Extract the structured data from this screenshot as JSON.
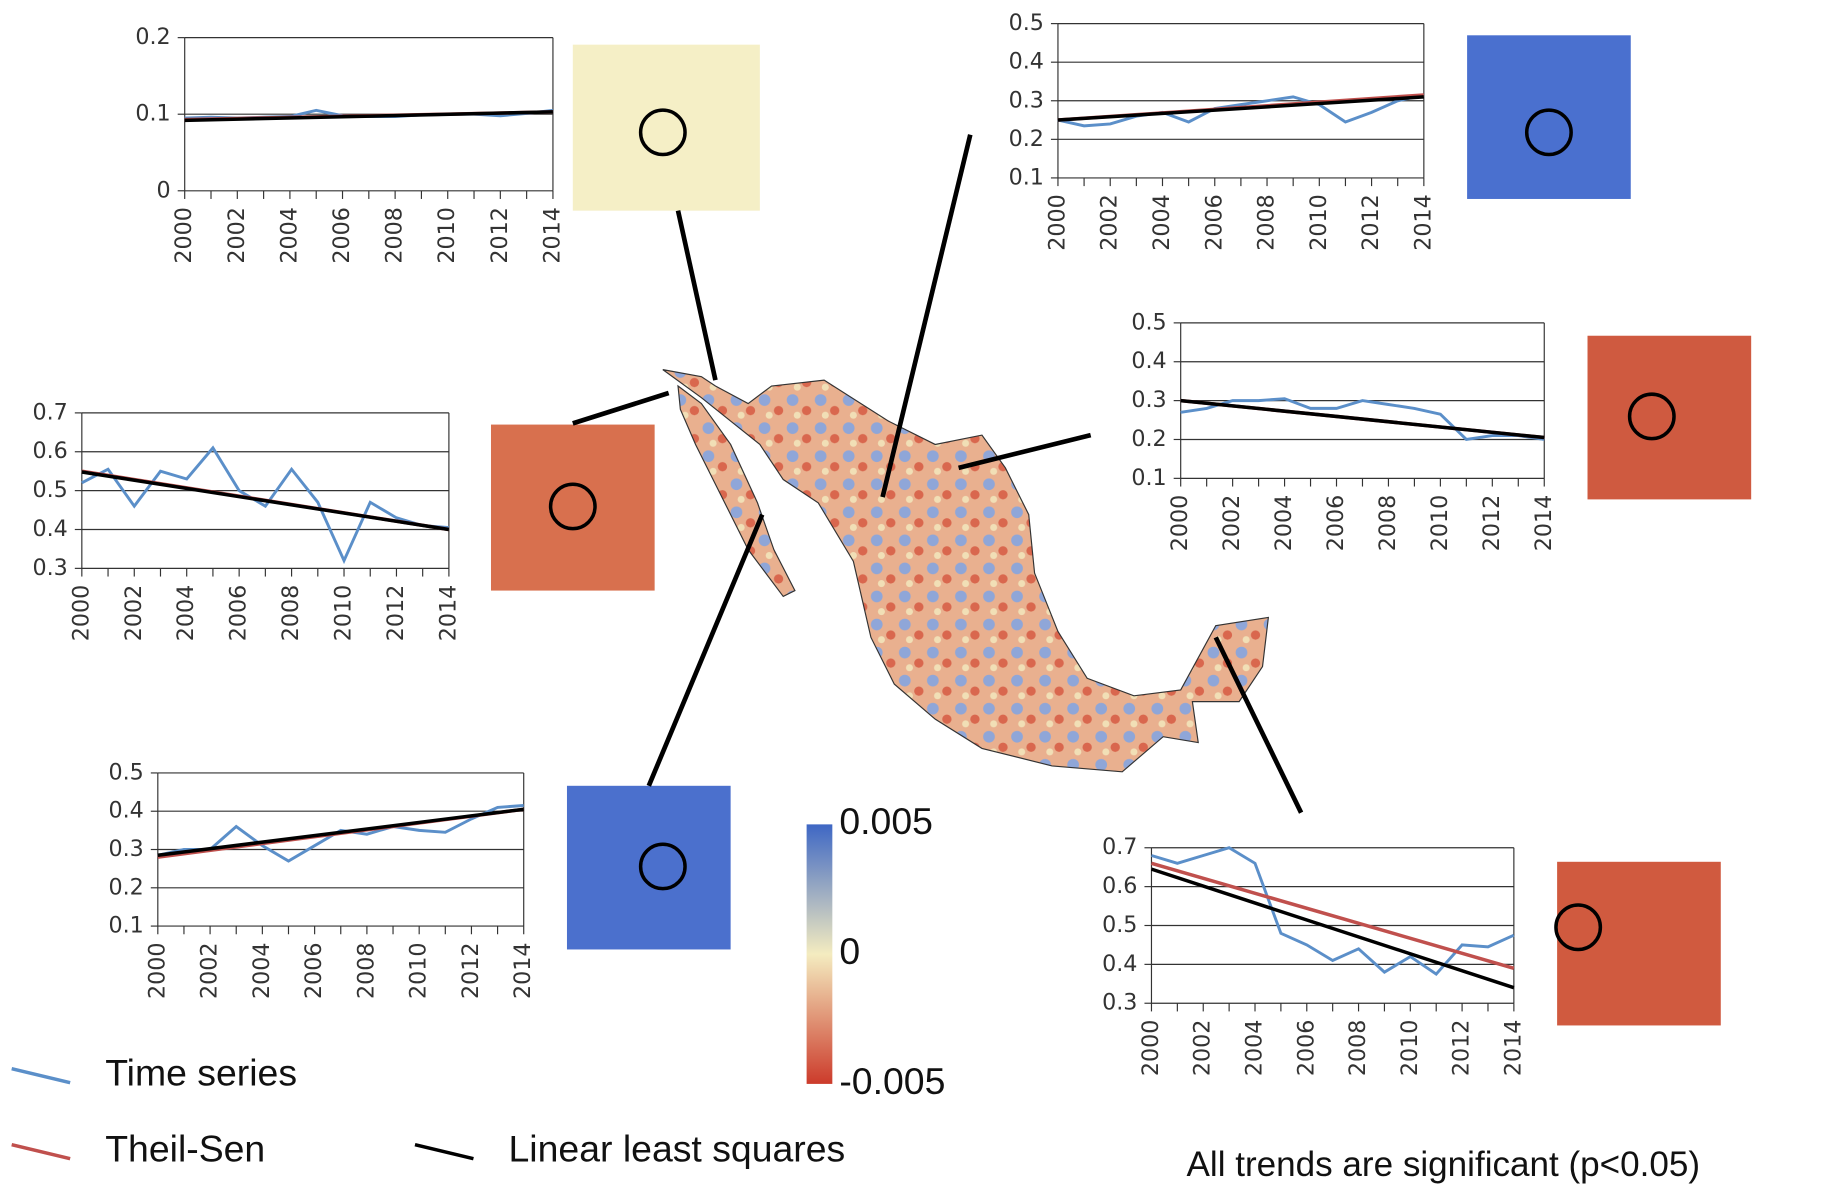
{
  "chart_data": [
    {
      "type": "line",
      "xlim": [
        2000,
        2014
      ],
      "xticks": [
        2000,
        2002,
        2004,
        2006,
        2008,
        2010,
        2012,
        2014
      ],
      "ylim": [
        0,
        0.2
      ],
      "yticks": [
        0,
        0.1,
        0.2
      ],
      "grid": true,
      "series": [
        {
          "x": [
            2000,
            2001,
            2002,
            2003,
            2004,
            2005,
            2006,
            2007,
            2008,
            2009,
            2010,
            2011,
            2012,
            2013,
            2014
          ],
          "values": [
            0.095,
            0.096,
            0.095,
            0.096,
            0.097,
            0.105,
            0.098,
            0.097,
            0.097,
            0.099,
            0.1,
            0.1,
            0.098,
            0.101,
            0.105
          ]
        },
        {
          "x": [
            2000,
            2014
          ],
          "values": [
            0.093,
            0.103
          ]
        },
        {
          "x": [
            2000,
            2014
          ],
          "values": [
            0.092,
            0.103
          ]
        }
      ]
    },
    {
      "type": "line",
      "xlim": [
        2000,
        2014
      ],
      "xticks": [
        2000,
        2002,
        2004,
        2006,
        2008,
        2010,
        2012,
        2014
      ],
      "ylim": [
        0.1,
        0.5
      ],
      "yticks": [
        0.1,
        0.2,
        0.3,
        0.4,
        0.5
      ],
      "grid": true,
      "series": [
        {
          "x": [
            2000,
            2001,
            2002,
            2003,
            2004,
            2005,
            2006,
            2007,
            2008,
            2009,
            2010,
            2011,
            2012,
            2013,
            2014
          ],
          "values": [
            0.25,
            0.235,
            0.24,
            0.26,
            0.27,
            0.245,
            0.28,
            0.29,
            0.3,
            0.31,
            0.29,
            0.245,
            0.27,
            0.3,
            0.315
          ]
        },
        {
          "x": [
            2000,
            2014
          ],
          "values": [
            0.25,
            0.315
          ]
        },
        {
          "x": [
            2000,
            2014
          ],
          "values": [
            0.25,
            0.31
          ]
        }
      ]
    },
    {
      "type": "line",
      "xlim": [
        2000,
        2014
      ],
      "xticks": [
        2000,
        2002,
        2004,
        2006,
        2008,
        2010,
        2012,
        2014
      ],
      "ylim": [
        0.3,
        0.7
      ],
      "yticks": [
        0.3,
        0.4,
        0.5,
        0.6,
        0.7
      ],
      "grid": true,
      "series": [
        {
          "x": [
            2000,
            2001,
            2002,
            2003,
            2004,
            2005,
            2006,
            2007,
            2008,
            2009,
            2010,
            2011,
            2012,
            2013,
            2014
          ],
          "values": [
            0.52,
            0.555,
            0.46,
            0.55,
            0.53,
            0.61,
            0.5,
            0.46,
            0.555,
            0.47,
            0.32,
            0.47,
            0.43,
            0.41,
            0.405
          ]
        },
        {
          "x": [
            2000,
            2014
          ],
          "values": [
            0.55,
            0.4
          ]
        },
        {
          "x": [
            2000,
            2014
          ],
          "values": [
            0.548,
            0.4
          ]
        }
      ]
    },
    {
      "type": "line",
      "xlim": [
        2000,
        2014
      ],
      "xticks": [
        2000,
        2002,
        2004,
        2006,
        2008,
        2010,
        2012,
        2014
      ],
      "ylim": [
        0.1,
        0.5
      ],
      "yticks": [
        0.1,
        0.2,
        0.3,
        0.4,
        0.5
      ],
      "grid": true,
      "series": [
        {
          "x": [
            2000,
            2001,
            2002,
            2003,
            2004,
            2005,
            2006,
            2007,
            2008,
            2009,
            2010,
            2011,
            2012,
            2013,
            2014
          ],
          "values": [
            0.27,
            0.28,
            0.3,
            0.3,
            0.305,
            0.28,
            0.28,
            0.3,
            0.29,
            0.28,
            0.265,
            0.2,
            0.21,
            0.21,
            0.2
          ]
        },
        {
          "x": [
            2000,
            2014
          ],
          "values": [
            0.3,
            0.205
          ]
        },
        {
          "x": [
            2000,
            2014
          ],
          "values": [
            0.3,
            0.205
          ]
        }
      ]
    },
    {
      "type": "line",
      "xlim": [
        2000,
        2014
      ],
      "xticks": [
        2000,
        2002,
        2004,
        2006,
        2008,
        2010,
        2012,
        2014
      ],
      "ylim": [
        0.1,
        0.5
      ],
      "yticks": [
        0.1,
        0.2,
        0.3,
        0.4,
        0.5
      ],
      "grid": true,
      "series": [
        {
          "x": [
            2000,
            2001,
            2002,
            2003,
            2004,
            2005,
            2006,
            2007,
            2008,
            2009,
            2010,
            2011,
            2012,
            2013,
            2014
          ],
          "values": [
            0.285,
            0.3,
            0.3,
            0.36,
            0.31,
            0.27,
            0.31,
            0.35,
            0.34,
            0.36,
            0.35,
            0.345,
            0.38,
            0.41,
            0.415
          ]
        },
        {
          "x": [
            2000,
            2014
          ],
          "values": [
            0.28,
            0.405
          ]
        },
        {
          "x": [
            2000,
            2014
          ],
          "values": [
            0.285,
            0.405
          ]
        }
      ]
    },
    {
      "type": "line",
      "xlim": [
        2000,
        2014
      ],
      "xticks": [
        2000,
        2002,
        2004,
        2006,
        2008,
        2010,
        2012,
        2014
      ],
      "ylim": [
        0.3,
        0.7
      ],
      "yticks": [
        0.3,
        0.4,
        0.5,
        0.6,
        0.7
      ],
      "grid": true,
      "series": [
        {
          "x": [
            2000,
            2001,
            2002,
            2003,
            2004,
            2005,
            2006,
            2007,
            2008,
            2009,
            2010,
            2011,
            2012,
            2013,
            2014
          ],
          "values": [
            0.68,
            0.66,
            0.68,
            0.7,
            0.66,
            0.48,
            0.45,
            0.41,
            0.44,
            0.38,
            0.42,
            0.375,
            0.45,
            0.445,
            0.475
          ]
        },
        {
          "x": [
            2000,
            2014
          ],
          "values": [
            0.66,
            0.39
          ]
        },
        {
          "x": [
            2000,
            2014
          ],
          "values": [
            0.645,
            0.34
          ]
        }
      ]
    }
  ],
  "legend": [
    {
      "name": "Time series",
      "color": "#5b8fc9"
    },
    {
      "name": "Theil-Sen",
      "color": "#c0504d"
    },
    {
      "name": "Linear least squares",
      "color": "#000000"
    }
  ],
  "colorbar": {
    "lim": [
      -0.005,
      0.005
    ],
    "ticks": [
      0.005,
      0,
      -0.005
    ]
  },
  "note": "All trends are significant (p<0.05)"
}
